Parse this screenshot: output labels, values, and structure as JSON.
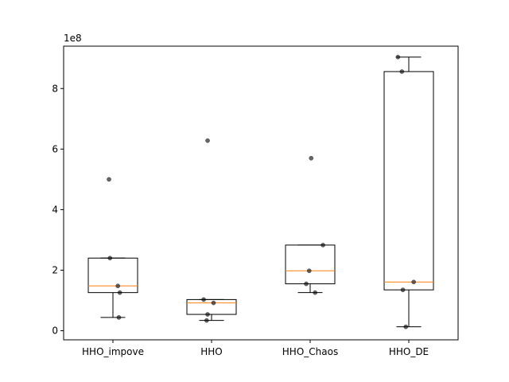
{
  "chart_data": {
    "type": "box",
    "title": "",
    "xlabel": "",
    "ylabel": "",
    "y_scale_label": "1e8",
    "y_scale": 100000000,
    "ylim": [
      -0.3,
      9.4
    ],
    "yticks": [
      0,
      2,
      4,
      6,
      8
    ],
    "ytick_labels": [
      "0",
      "2",
      "4",
      "6",
      "8"
    ],
    "grid": false,
    "categories": [
      "HHO_impove",
      "HHO",
      "HHO_Chaos",
      "HHO_DE"
    ],
    "boxes": [
      {
        "name": "HHO_impove",
        "whisker_low": 0.44,
        "q1": 1.26,
        "median": 1.48,
        "q3": 2.4,
        "whisker_high": 2.4
      },
      {
        "name": "HHO",
        "whisker_low": 0.34,
        "q1": 0.54,
        "median": 0.92,
        "q3": 1.03,
        "whisker_high": 1.03
      },
      {
        "name": "HHO_Chaos",
        "whisker_low": 1.26,
        "q1": 1.55,
        "median": 1.98,
        "q3": 2.83,
        "whisker_high": 2.83
      },
      {
        "name": "HHO_DE",
        "whisker_low": 0.13,
        "q1": 1.35,
        "median": 1.61,
        "q3": 8.56,
        "whisker_high": 9.04
      }
    ],
    "points": [
      {
        "category": "HHO_impove",
        "values": [
          5.0,
          2.4,
          1.48,
          1.26,
          0.44
        ],
        "jitter": [
          -0.04,
          -0.03,
          0.05,
          0.07,
          0.06
        ]
      },
      {
        "category": "HHO",
        "values": [
          6.28,
          1.03,
          0.92,
          0.54,
          0.34
        ],
        "jitter": [
          -0.04,
          -0.08,
          0.02,
          -0.04,
          -0.05
        ]
      },
      {
        "category": "HHO_Chaos",
        "values": [
          5.7,
          2.83,
          1.98,
          1.55,
          1.26
        ],
        "jitter": [
          0.01,
          0.13,
          -0.01,
          -0.04,
          0.05
        ]
      },
      {
        "category": "HHO_DE",
        "values": [
          9.04,
          8.56,
          1.61,
          1.35,
          0.13
        ],
        "jitter": [
          -0.11,
          -0.07,
          0.05,
          -0.06,
          -0.03
        ]
      }
    ],
    "colors": {
      "box_edge": "#000000",
      "median": "#ff7f0e",
      "points": "#000000"
    }
  }
}
